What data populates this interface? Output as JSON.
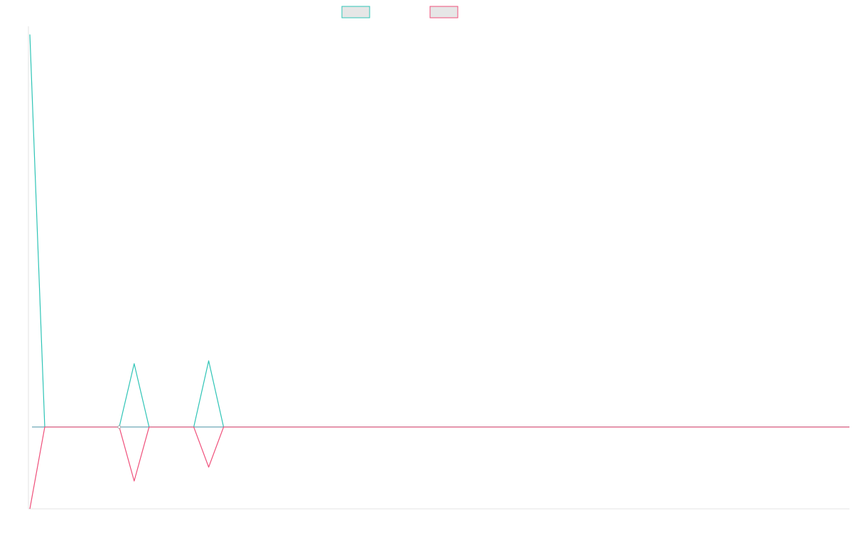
{
  "chart_data": {
    "type": "line",
    "title": "",
    "xlabel": "",
    "ylabel": "",
    "grid": false,
    "legend_position": "top-center",
    "x": [
      0,
      1,
      2,
      3,
      4,
      5,
      6,
      7,
      8,
      9,
      10,
      11,
      12,
      13,
      14,
      15,
      16,
      17,
      18,
      19,
      20,
      21,
      22,
      23,
      24,
      25,
      26,
      27,
      28,
      29,
      30,
      31,
      32,
      33,
      34,
      35,
      36,
      37,
      38,
      39,
      40,
      41,
      42,
      43,
      44,
      45,
      46,
      47,
      48,
      49,
      50,
      51,
      52,
      53,
      54,
      55
    ],
    "xlim": [
      0,
      55
    ],
    "ylim": [
      -20,
      98
    ],
    "series": [
      {
        "name": "",
        "color": "#2ec4b6",
        "values": [
          96,
          0,
          0,
          0,
          0,
          0,
          0,
          15.5,
          0,
          0,
          0,
          0,
          16.2,
          0,
          0,
          0,
          0,
          0,
          0,
          0,
          0,
          0,
          0,
          0,
          0,
          0,
          0,
          0,
          0,
          0,
          0,
          0,
          0,
          0,
          0,
          0,
          0,
          0,
          0,
          0,
          0,
          0,
          0,
          0,
          0,
          0,
          0,
          0,
          0,
          0,
          0,
          0,
          0,
          0,
          0,
          0
        ]
      },
      {
        "name": "",
        "color": "#ef4f7a",
        "values": [
          -20,
          0,
          0,
          0,
          0,
          0,
          0,
          -13.2,
          0,
          0,
          0,
          0,
          -9.8,
          0,
          0,
          0,
          0,
          0,
          0,
          0,
          0,
          0,
          0,
          0,
          0,
          0,
          0,
          0,
          0,
          0,
          0,
          0,
          0,
          0,
          0,
          0,
          0,
          0,
          0,
          0,
          0,
          0,
          0,
          0,
          0,
          0,
          0,
          0,
          0,
          0,
          0,
          0,
          0,
          0,
          0,
          0
        ]
      }
    ],
    "baseline_color": "#4a90a4",
    "marker_point": {
      "x": 6,
      "y": 0
    }
  }
}
